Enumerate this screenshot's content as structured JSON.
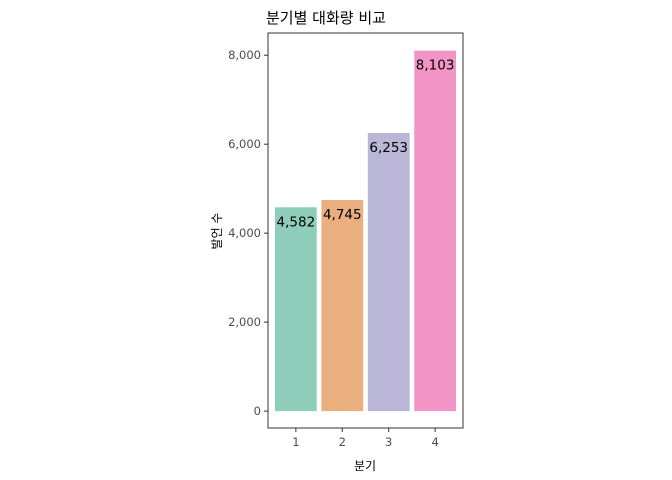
{
  "chart_data": {
    "type": "bar",
    "title": "분기별 대화량 비교",
    "xlabel": "분기",
    "ylabel": "발언 수",
    "categories": [
      "1",
      "2",
      "3",
      "4"
    ],
    "values": [
      4582,
      4745,
      6253,
      8103
    ],
    "value_labels": [
      "4,582",
      "4,745",
      "6,253",
      "8,103"
    ],
    "colors": [
      "#8ecdb9",
      "#ebaf7f",
      "#bab6d8",
      "#f295c6"
    ],
    "ylim": [
      -380,
      8500
    ],
    "yticks": [
      0,
      2000,
      4000,
      6000,
      8000
    ],
    "ytick_labels": [
      "0",
      "2,000",
      "4,000",
      "6,000",
      "8,000"
    ],
    "grid": false,
    "legend": "none"
  }
}
